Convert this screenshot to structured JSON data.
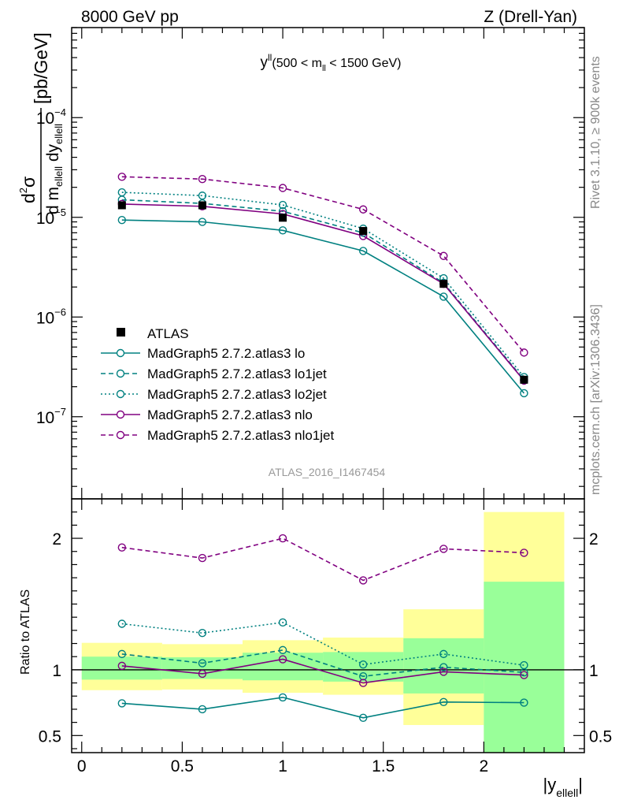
{
  "header": {
    "left": "8000 GeV pp",
    "right": "Z (Drell-Yan)"
  },
  "side_labels": {
    "rivet": "Rivet 3.1.10, ≥ 900k events",
    "mcplots": "mcplots.cern.ch [arXiv:1306.3436]"
  },
  "plot_title": {
    "main": "y",
    "sup": "ll",
    "range_open": "(500 < m",
    "range_sub": "ll",
    "range_close": " < 1500 GeV)"
  },
  "watermark": "ATLAS_2016_I1467454",
  "ylabel_top": {
    "num_d": "d",
    "num_sup": "2",
    "num_sigma": "σ",
    "den_d1": "d m",
    "den_sub1": "ellell",
    "den_d2": "dy",
    "den_sub2": "ellell",
    "unit": "[pb/GeV]"
  },
  "ylabel_ratio": "Ratio to ATLAS",
  "xlabel": {
    "open": "|y",
    "sub": "ellell",
    "close": "|"
  },
  "colors": {
    "teal": "#008080",
    "purple": "#800080",
    "green_band": "#99ff99",
    "yellow_band": "#ffff99",
    "data": "#000000"
  },
  "chart_data": {
    "type": "line",
    "x": [
      0.2,
      0.6,
      1.0,
      1.4,
      1.8,
      2.2
    ],
    "bin_edges": [
      0,
      0.4,
      0.8,
      1.2,
      1.6,
      2.0,
      2.4
    ],
    "xlim": [
      -0.05,
      2.5
    ],
    "main": {
      "yscale": "log",
      "ylim": [
        1.5e-08,
        0.0008
      ],
      "yticks": [
        {
          "value": 1e-07,
          "mant": "10",
          "exp": "−7"
        },
        {
          "value": 1e-06,
          "mant": "10",
          "exp": "−6"
        },
        {
          "value": 1e-05,
          "mant": "10",
          "exp": "−5"
        },
        {
          "value": 0.0001,
          "mant": "10",
          "exp": "−4"
        }
      ],
      "data": {
        "name": "ATLAS",
        "values": [
          1.32e-05,
          1.32e-05,
          9.9e-06,
          7.3e-06,
          2.15e-06,
          2.35e-07
        ]
      },
      "series": [
        {
          "name": "MadGraph5 2.7.2.atlas3 lo",
          "color": "#008080",
          "dash": "solid",
          "values": [
            9.4e-06,
            9e-06,
            7.4e-06,
            4.6e-06,
            1.6e-06,
            1.72e-07
          ]
        },
        {
          "name": "MadGraph5 2.7.2.atlas3 lo1jet",
          "color": "#008080",
          "dash": "dashed",
          "values": [
            1.5e-05,
            1.38e-05,
            1.15e-05,
            7e-06,
            2.2e-06,
            2.35e-07
          ]
        },
        {
          "name": "MadGraph5 2.7.2.atlas3 lo2jet",
          "color": "#008080",
          "dash": "dotted",
          "values": [
            1.78e-05,
            1.65e-05,
            1.33e-05,
            7.7e-06,
            2.45e-06,
            2.5e-07
          ]
        },
        {
          "name": "MadGraph5 2.7.2.atlas3 nlo",
          "color": "#800080",
          "dash": "solid",
          "values": [
            1.36e-05,
            1.29e-05,
            1.08e-05,
            6.5e-06,
            2.15e-06,
            2.3e-07
          ]
        },
        {
          "name": "MadGraph5 2.7.2.atlas3 nlo1jet",
          "color": "#800080",
          "dash": "dashed",
          "values": [
            2.55e-05,
            2.42e-05,
            1.97e-05,
            1.2e-05,
            4.1e-06,
            4.4e-07
          ]
        }
      ]
    },
    "ratio": {
      "ylabel": "Ratio to ATLAS",
      "ylim": [
        0.37,
        2.3
      ],
      "yticks": [
        {
          "value": 0.5,
          "label": "0.5"
        },
        {
          "value": 1,
          "label": "1"
        },
        {
          "value": 2,
          "label": "2"
        }
      ],
      "bands": {
        "inner": [
          [
            0.925,
            1.1
          ],
          [
            0.93,
            1.095
          ],
          [
            0.92,
            1.13
          ],
          [
            0.91,
            1.135
          ],
          [
            0.82,
            1.24
          ],
          [
            0.37,
            1.67
          ]
        ],
        "outer": [
          [
            0.845,
            1.205
          ],
          [
            0.85,
            1.195
          ],
          [
            0.825,
            1.225
          ],
          [
            0.81,
            1.245
          ],
          [
            0.58,
            1.46
          ],
          [
            0.37,
            2.2
          ]
        ]
      },
      "series": [
        {
          "name": "MadGraph5 2.7.2.atlas3 lo",
          "values": [
            0.745,
            0.7,
            0.79,
            0.635,
            0.755,
            0.75
          ]
        },
        {
          "name": "MadGraph5 2.7.2.atlas3 lo1jet",
          "values": [
            1.12,
            1.05,
            1.15,
            0.95,
            1.02,
            0.98
          ]
        },
        {
          "name": "MadGraph5 2.7.2.atlas3 lo2jet",
          "values": [
            1.35,
            1.28,
            1.36,
            1.04,
            1.12,
            1.035
          ]
        },
        {
          "name": "MadGraph5 2.7.2.atlas3 nlo",
          "values": [
            1.03,
            0.97,
            1.08,
            0.9,
            0.985,
            0.96
          ]
        },
        {
          "name": "MadGraph5 2.7.2.atlas3 nlo1jet",
          "values": [
            1.93,
            1.85,
            2.0,
            1.68,
            1.92,
            1.89
          ]
        }
      ]
    },
    "xticks": [
      {
        "value": 0,
        "label": "0"
      },
      {
        "value": 0.5,
        "label": "0.5"
      },
      {
        "value": 1,
        "label": "1"
      },
      {
        "value": 1.5,
        "label": "1.5"
      },
      {
        "value": 2,
        "label": "2"
      }
    ],
    "legend": {
      "placement": "bottom-left"
    }
  }
}
